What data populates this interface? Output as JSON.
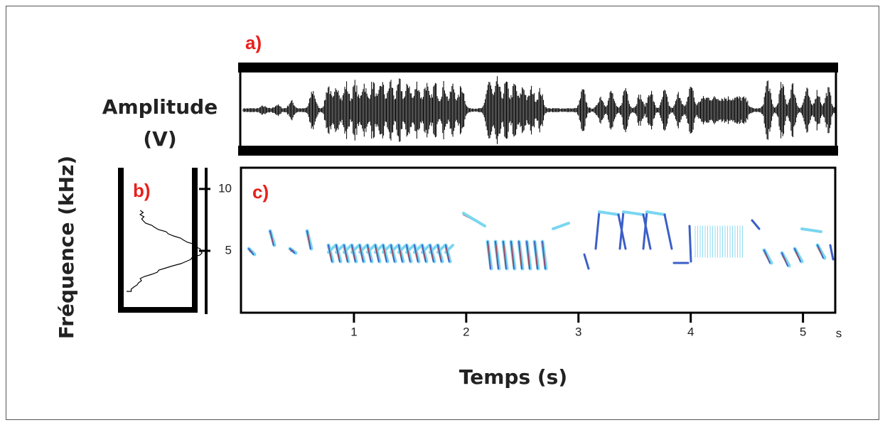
{
  "panel_labels": [
    "a)",
    "b)",
    "c)"
  ],
  "amplitude_label": [
    "Amplitude",
    "(V)"
  ],
  "frequency_label": "Fréquence (kHz)",
  "time_label": "Temps (s)",
  "time_unit": "s",
  "xlim": [
    0,
    5.3
  ],
  "xticks": [
    1,
    2,
    3,
    4,
    5
  ],
  "ylim": [
    0,
    11.6
  ],
  "yticks": [
    5,
    10
  ]
}
